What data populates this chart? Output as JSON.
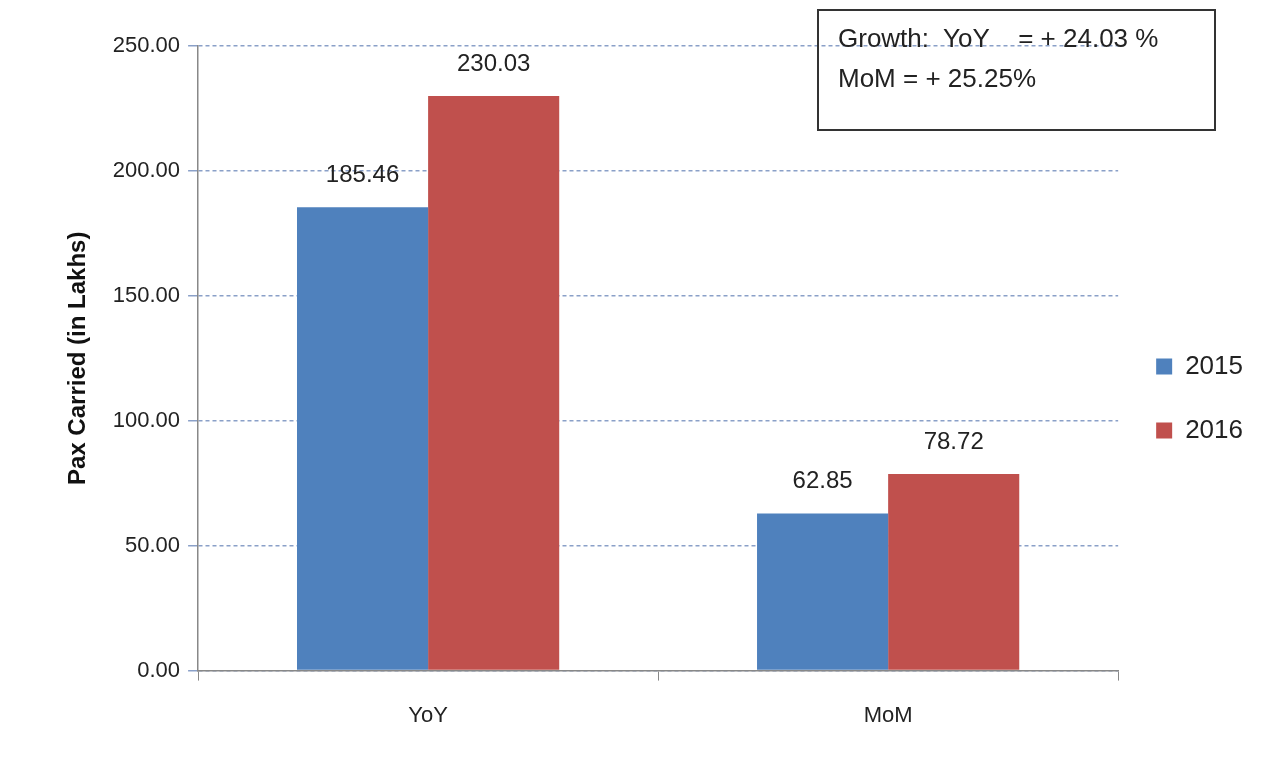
{
  "chart_data": {
    "type": "bar",
    "ylabel": "Pax Carried (in Lakhs)",
    "categories": [
      "YoY",
      "MoM"
    ],
    "series": [
      {
        "name": "2015",
        "color": "#4f81bd",
        "values": [
          185.46,
          62.85
        ]
      },
      {
        "name": "2016",
        "color": "#c0504d",
        "values": [
          230.03,
          78.72
        ]
      }
    ],
    "ylim": [
      0,
      250
    ],
    "yticks": [
      {
        "value": 0,
        "label": "0.00"
      },
      {
        "value": 50,
        "label": "50.00"
      },
      {
        "value": 100,
        "label": "100.00"
      },
      {
        "value": 150,
        "label": "150.00"
      },
      {
        "value": 200,
        "label": "200.00"
      },
      {
        "value": 250,
        "label": "250.00"
      }
    ],
    "grid": "y",
    "legend": "right",
    "data_labels": true,
    "annotations": [
      "Growth:  YoY    = + 24.03 %",
      "MoM = + 25.25%"
    ]
  }
}
